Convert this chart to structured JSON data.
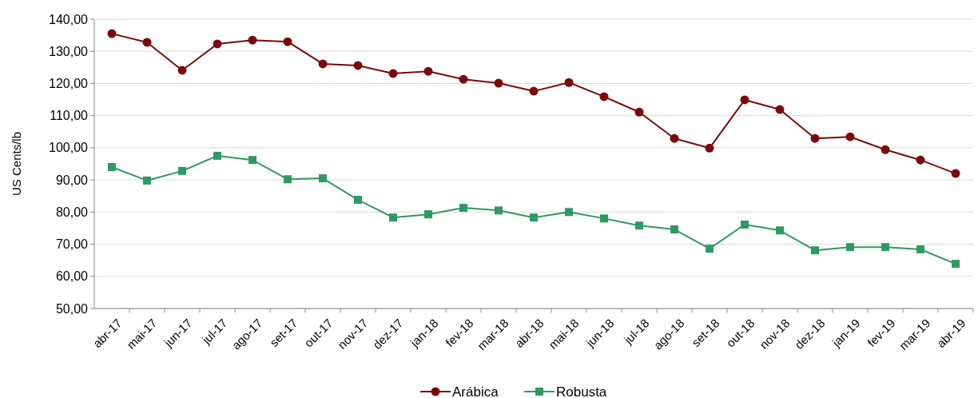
{
  "chart_data": {
    "type": "line",
    "ylabel": "US Cents/lb",
    "categories": [
      "abr-17",
      "mai-17",
      "jun-17",
      "jul-17",
      "ago-17",
      "set-17",
      "out-17",
      "nov-17",
      "dez-17",
      "jan-18",
      "fev-18",
      "mar-18",
      "abr-18",
      "mai-18",
      "jun-18",
      "jul-18",
      "ago-18",
      "set-18",
      "out-18",
      "nov-18",
      "dez-18",
      "jan-19",
      "fev-19",
      "mar-19",
      "abr-19"
    ],
    "series": [
      {
        "name": "Arábica",
        "color": "#7b0a0a",
        "marker": "circle",
        "values": [
          135.5,
          132.8,
          124.1,
          132.3,
          133.5,
          133.0,
          126.1,
          125.6,
          123.1,
          123.8,
          121.3,
          120.1,
          117.6,
          120.3,
          115.9,
          111.1,
          102.9,
          99.9,
          114.9,
          111.9,
          102.9,
          103.4,
          99.4,
          96.2,
          92.0
        ]
      },
      {
        "name": "Robusta",
        "color": "#2e9a62",
        "marker": "square",
        "values": [
          94.0,
          89.8,
          92.8,
          97.5,
          96.2,
          90.2,
          90.5,
          83.8,
          78.3,
          79.3,
          81.3,
          80.5,
          78.3,
          80.0,
          78.0,
          75.8,
          74.6,
          68.6,
          76.1,
          74.3,
          68.1,
          69.1,
          69.1,
          68.4,
          63.9
        ]
      }
    ],
    "ylim": [
      50,
      140
    ],
    "yticks": [
      {
        "value": 50,
        "label": "50,00"
      },
      {
        "value": 60,
        "label": "60,00"
      },
      {
        "value": 70,
        "label": "70,00"
      },
      {
        "value": 80,
        "label": "80,00"
      },
      {
        "value": 90,
        "label": "90,00"
      },
      {
        "value": 100,
        "label": "100,00"
      },
      {
        "value": 110,
        "label": "110,00"
      },
      {
        "value": 120,
        "label": "120,00"
      },
      {
        "value": 130,
        "label": "130,00"
      },
      {
        "value": 140,
        "label": "140,00"
      }
    ],
    "grid": "y",
    "legend": "bottom"
  }
}
